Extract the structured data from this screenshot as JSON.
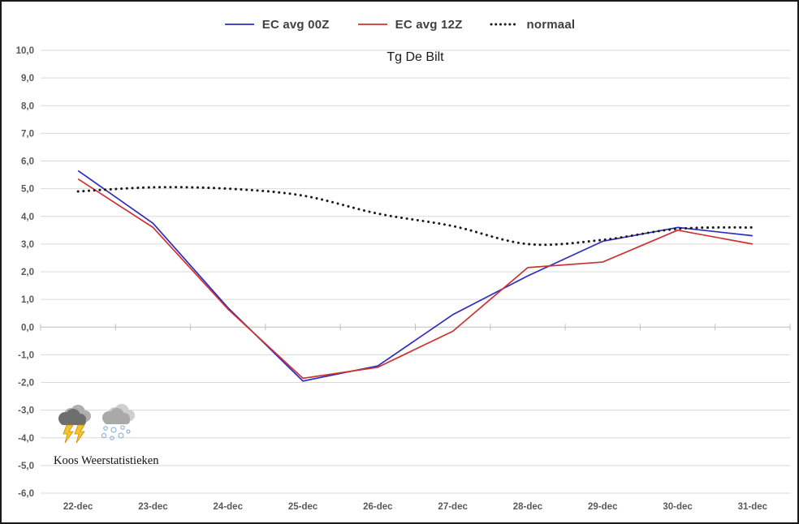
{
  "title": "Tg De Bilt",
  "chart_data": {
    "type": "line",
    "title": "Tg De Bilt",
    "categories": [
      "22-dec",
      "23-dec",
      "24-dec",
      "25-dec",
      "26-dec",
      "27-dec",
      "28-dec",
      "29-dec",
      "30-dec",
      "31-dec"
    ],
    "series": [
      {
        "name": "EC avg 00Z",
        "color": "#2E2EBE",
        "style": "solid",
        "values": [
          5.65,
          3.75,
          0.7,
          -1.95,
          -1.4,
          0.45,
          1.85,
          3.1,
          3.6,
          3.3
        ]
      },
      {
        "name": "EC avg 12Z",
        "color": "#CC3232",
        "style": "solid",
        "values": [
          5.35,
          3.6,
          0.65,
          -1.85,
          -1.45,
          -0.15,
          2.15,
          2.35,
          3.5,
          3.0
        ]
      },
      {
        "name": "normaal",
        "color": "#1A1A1A",
        "style": "dotted",
        "values": [
          4.9,
          5.05,
          5.0,
          4.75,
          4.1,
          3.65,
          3.0,
          3.15,
          3.55,
          3.6
        ]
      }
    ],
    "xlabel": "",
    "ylabel": "",
    "ylim": [
      -6,
      10
    ],
    "ytick_step": 1,
    "ytick_format": "comma-decimal",
    "grid": true,
    "gridline_color": "#D9D9D9",
    "axis_color": "#BFBFBF",
    "legend_position": "top-center"
  },
  "branding": {
    "caption": "Koos Weerstatistieken",
    "icons": [
      "thunderstorm",
      "snow-shower"
    ]
  }
}
